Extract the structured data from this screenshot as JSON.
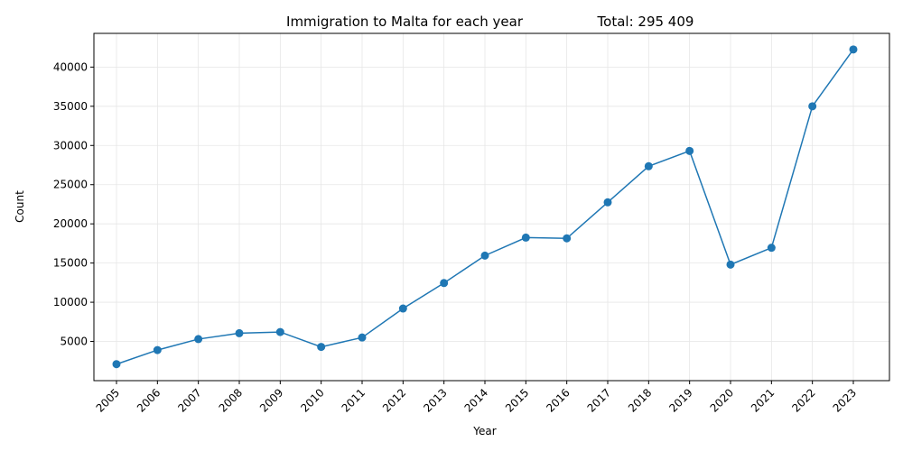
{
  "chart_data": {
    "type": "line",
    "title": "Immigration to Malta for each year",
    "subtitle": "Total: 295 409",
    "xlabel": "Year",
    "ylabel": "Count",
    "categories": [
      "2005",
      "2006",
      "2007",
      "2008",
      "2009",
      "2010",
      "2011",
      "2012",
      "2013",
      "2014",
      "2015",
      "2016",
      "2017",
      "2018",
      "2019",
      "2020",
      "2021",
      "2022",
      "2023"
    ],
    "values": [
      2100,
      3900,
      5300,
      6050,
      6200,
      4300,
      5500,
      9200,
      12450,
      15950,
      18250,
      18150,
      22750,
      27350,
      29300,
      14800,
      16950,
      35000,
      42250
    ],
    "yticks": [
      5000,
      10000,
      15000,
      20000,
      25000,
      30000,
      35000,
      40000
    ],
    "ytick_labels": [
      "5000",
      "10000",
      "15000",
      "20000",
      "25000",
      "30000",
      "35000",
      "40000"
    ],
    "ylim": [
      -2.0,
      44300
    ],
    "grid": true,
    "marker": "circle",
    "line_color": "#1f77b4",
    "grid_color": "#e6e6e6"
  }
}
